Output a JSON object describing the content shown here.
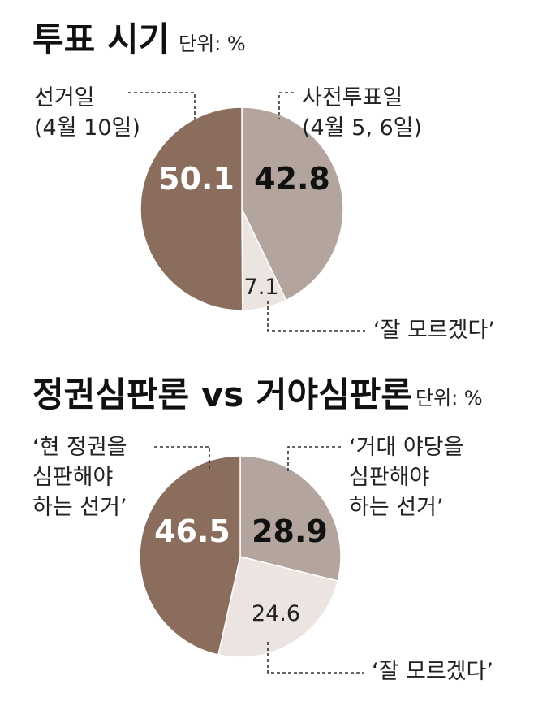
{
  "chart_data": [
    {
      "type": "pie",
      "title": "투표 시기",
      "unit": "단위: %",
      "slices": [
        {
          "key": "election_day",
          "value": 50.1,
          "display": "50.1",
          "label_lines": [
            "선거일",
            "(4월 10일)"
          ],
          "color": "#8a6d5c",
          "text_color": "#ffffff"
        },
        {
          "key": "early_voting",
          "value": 42.8,
          "display": "42.8",
          "label_lines": [
            "사전투표일",
            "(4월 5, 6일)"
          ],
          "color": "#b3a59d",
          "text_color": "#111111"
        },
        {
          "key": "dont_know",
          "value": 7.1,
          "display": "7.1",
          "label_lines": [
            "‘잘 모르겠다’"
          ],
          "color": "#ece4e0",
          "text_color": "#222222"
        }
      ]
    },
    {
      "type": "pie",
      "title": "정권심판론 vs 거야심판론",
      "unit": "단위: %",
      "slices": [
        {
          "key": "judge_government",
          "value": 46.5,
          "display": "46.5",
          "label_lines": [
            "‘현 정권을",
            "심판해야",
            "하는 선거’"
          ],
          "color": "#8a6d5c",
          "text_color": "#ffffff"
        },
        {
          "key": "judge_opposition",
          "value": 28.9,
          "display": "28.9",
          "label_lines": [
            "‘거대 야당을",
            "심판해야",
            "하는 선거’"
          ],
          "color": "#b3a59d",
          "text_color": "#111111"
        },
        {
          "key": "dont_know",
          "value": 24.6,
          "display": "24.6",
          "label_lines": [
            "‘잘 모르겠다’"
          ],
          "color": "#ece4e0",
          "text_color": "#222222"
        }
      ]
    }
  ]
}
